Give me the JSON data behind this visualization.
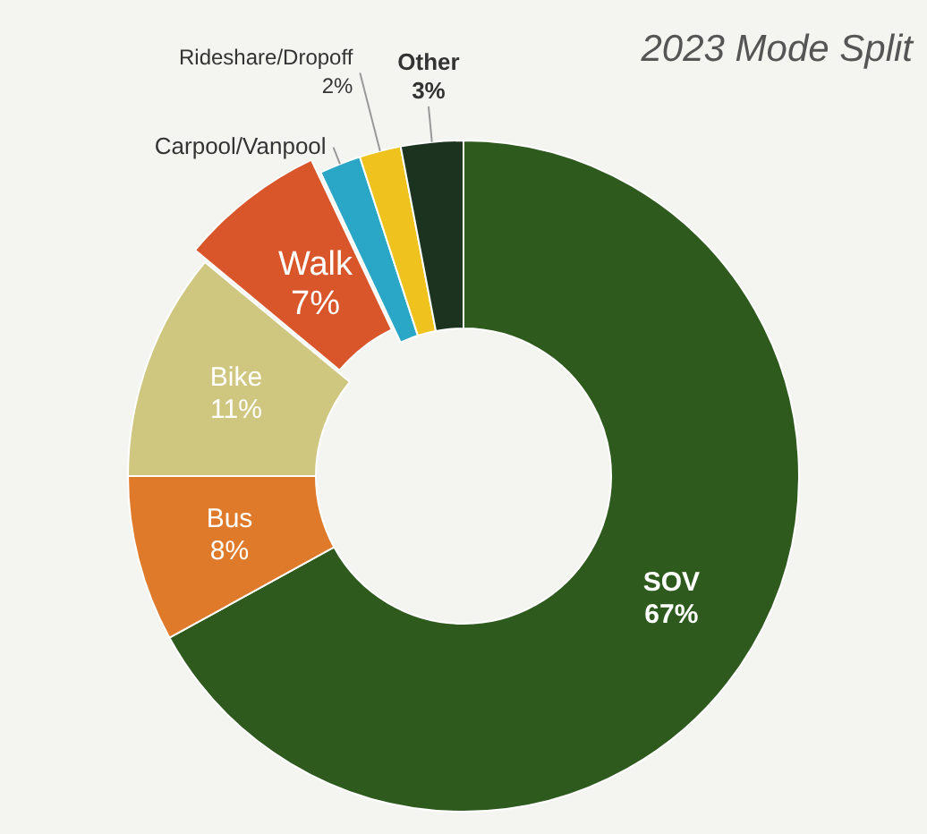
{
  "chart_data": {
    "type": "donut",
    "title": "2023 Mode Split",
    "categories": [
      "SOV",
      "Bus",
      "Bike",
      "Walk",
      "Carpool/Vanpool",
      "Rideshare/Dropoff",
      "Other"
    ],
    "values": [
      67,
      8,
      11,
      7,
      2,
      2,
      3
    ],
    "value_labels": [
      "67%",
      "8%",
      "11%",
      "7%",
      null,
      "2%",
      "3%"
    ],
    "colors": [
      "#2f5a1e",
      "#e07a2b",
      "#cfc680",
      "#d9562b",
      "#2aa7c6",
      "#efc21e",
      "#1c3320"
    ],
    "legend": false
  }
}
